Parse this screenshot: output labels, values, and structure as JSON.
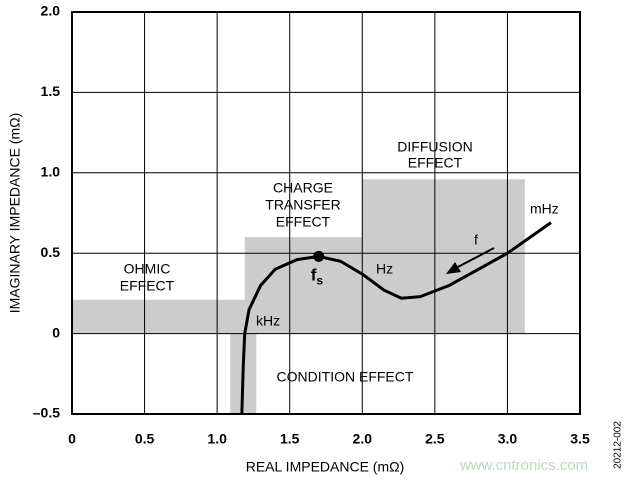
{
  "chart_data": {
    "type": "line",
    "xlabel": "REAL IMPEDANCE (mΩ)",
    "ylabel": "IMAGINARY IMPEDANCE (mΩ)",
    "xlim": [
      0,
      3.5
    ],
    "ylim": [
      -0.5,
      2.0
    ],
    "xticks": [
      0,
      0.5,
      {
        "value": 1.0,
        "label": "1.0"
      },
      1.5,
      {
        "value": 2.0,
        "label": "2.0"
      },
      2.5,
      {
        "value": 3.0,
        "label": "3.0"
      },
      3.5
    ],
    "yticks": [
      {
        "value": -0.5,
        "label": "–0.5"
      },
      0,
      0.5,
      {
        "value": 1.0,
        "label": "1.0"
      },
      1.5,
      {
        "value": 2.0,
        "label": "2.0"
      }
    ],
    "grid": true,
    "region_color": "#cccccc",
    "regions": [
      {
        "label_lines": [
          "OHMIC",
          "EFFECT"
        ],
        "x": [
          0,
          1.19
        ],
        "y": [
          0,
          0.21
        ]
      },
      {
        "label_lines": [
          "CHARGE",
          "TRANSFER",
          "EFFECT"
        ],
        "x": [
          1.19,
          2.0
        ],
        "y": [
          0,
          0.6
        ]
      },
      {
        "label_lines": [
          "DIFFUSION",
          "EFFECT"
        ],
        "x": [
          2.0,
          3.12
        ],
        "y": [
          0,
          0.96
        ]
      },
      {
        "label_lines": [
          "CONDITION EFFECT"
        ],
        "x": [
          1.09,
          1.27
        ],
        "y": [
          -0.5,
          0
        ]
      }
    ],
    "x": [
      1.17,
      1.18,
      1.19,
      1.22,
      1.3,
      1.4,
      1.55,
      1.7,
      1.85,
      2.0,
      2.15,
      2.27,
      2.4,
      2.6,
      2.8,
      3.0,
      3.3
    ],
    "series": [
      {
        "color": "#000000",
        "values": [
          -0.5,
          -0.2,
          0,
          0.15,
          0.3,
          0.4,
          0.46,
          0.48,
          0.45,
          0.37,
          0.27,
          0.22,
          0.23,
          0.3,
          0.4,
          0.5,
          0.69
        ]
      }
    ],
    "marker": {
      "x": 1.7,
      "y": 0.48,
      "label": "f",
      "subscript": "s"
    },
    "annotations": [
      "kHz",
      "Hz",
      "mHz",
      "f"
    ],
    "figure_id": "20212-002",
    "watermark": "www.cntronics.com"
  }
}
